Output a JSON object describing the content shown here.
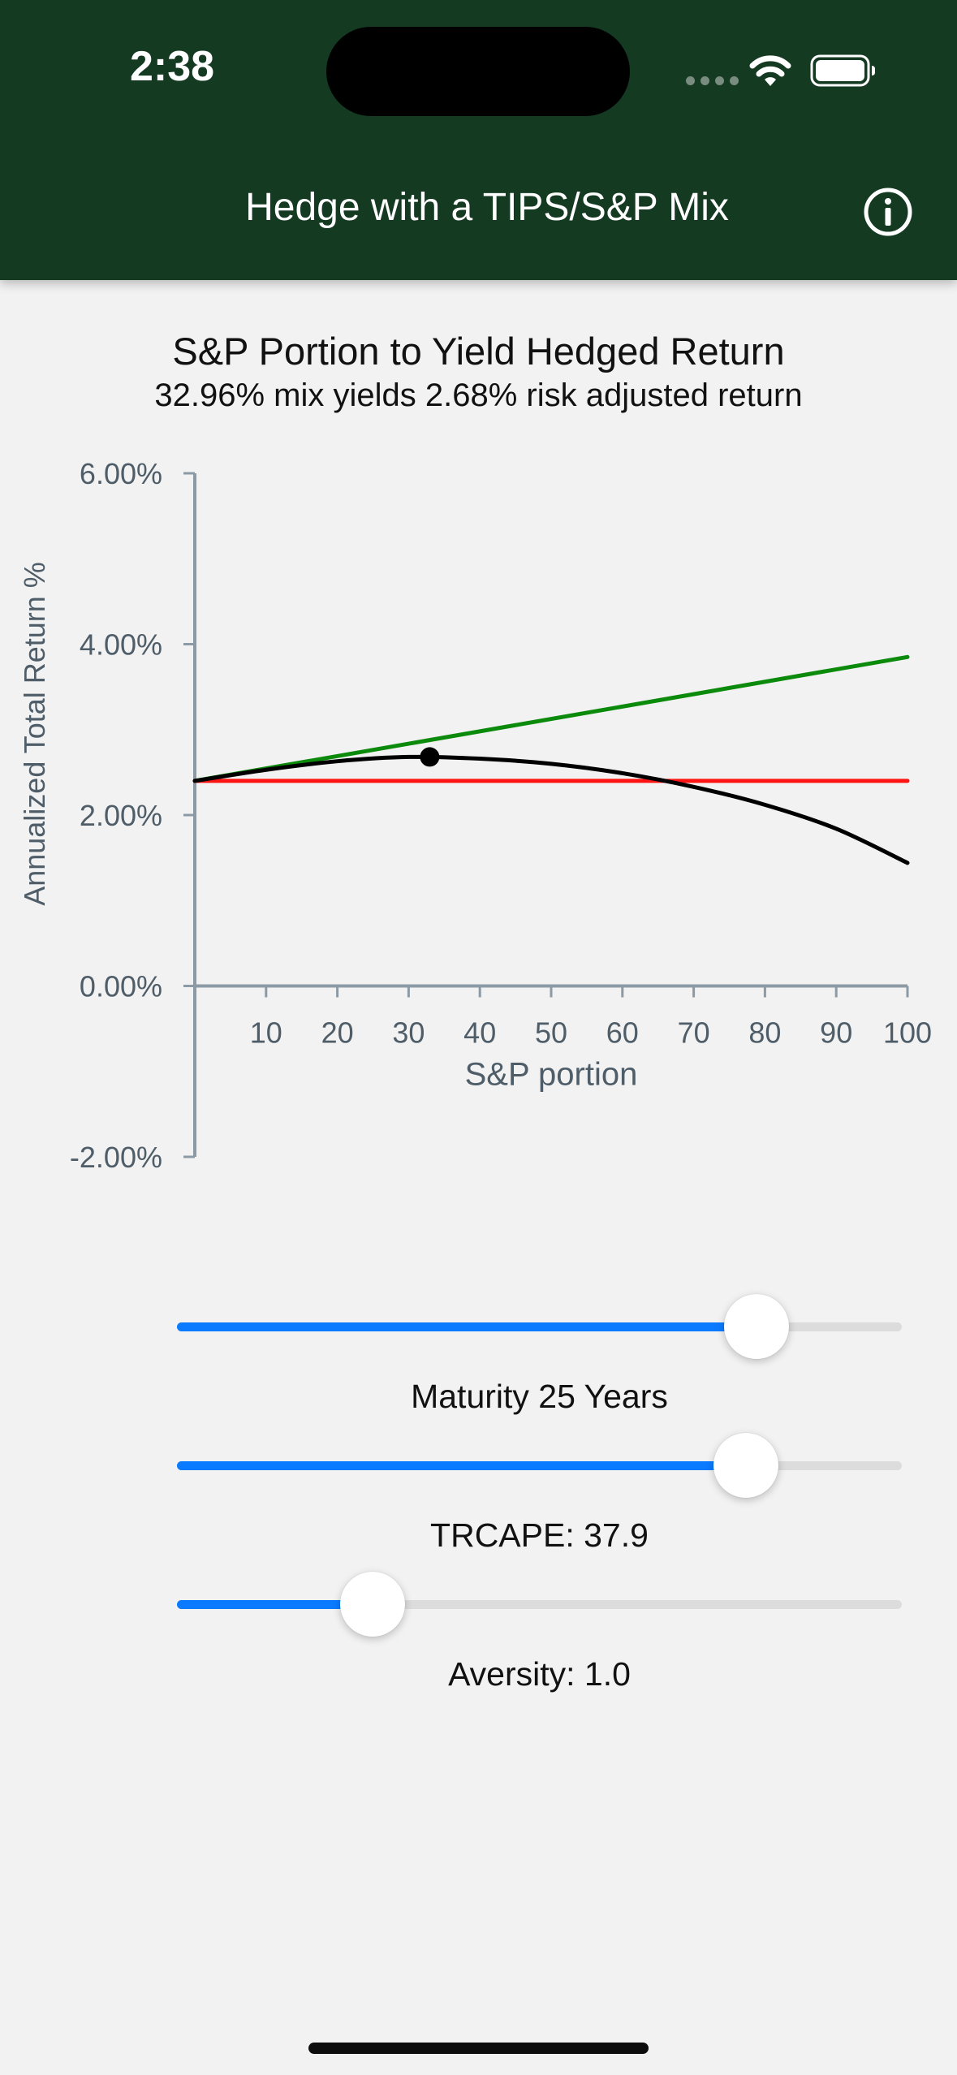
{
  "status_bar": {
    "time": "2:38"
  },
  "nav": {
    "title": "Hedge with a TIPS/S&P Mix",
    "info_icon": "info-icon"
  },
  "colors": {
    "header_bg": "#143a22",
    "accent": "#0a7bff",
    "series_green": "#0b8a0b",
    "series_red": "#ff1414",
    "series_black": "#000000",
    "axis": "#8c9aa5"
  },
  "chart": {
    "title": "S&P Portion to Yield Hedged Return",
    "subtitle": "32.96% mix yields 2.68% risk adjusted return"
  },
  "chart_data": {
    "type": "line",
    "xlabel": "S&P portion",
    "ylabel": "Annualized Total Return %",
    "xlim": [
      0,
      100
    ],
    "ylim": [
      -2,
      6
    ],
    "x_ticks": [
      10,
      20,
      30,
      40,
      50,
      60,
      70,
      80,
      90,
      100
    ],
    "y_ticks": [
      {
        "value": 6,
        "label": "6.00%"
      },
      {
        "value": 4,
        "label": "4.00%"
      },
      {
        "value": 2,
        "label": "2.00%"
      },
      {
        "value": 0,
        "label": "0.00%"
      },
      {
        "value": -2,
        "label": "-2.00%"
      }
    ],
    "series": [
      {
        "color": "#0b8a0b",
        "x": [
          0,
          100
        ],
        "y": [
          2.4,
          3.85
        ]
      },
      {
        "color": "#ff1414",
        "x": [
          0,
          100
        ],
        "y": [
          2.4,
          2.4
        ]
      },
      {
        "color": "#000000",
        "x": [
          0,
          10,
          20,
          30,
          40,
          50,
          60,
          70,
          80,
          90,
          100
        ],
        "y": [
          2.4,
          2.53,
          2.63,
          2.68,
          2.66,
          2.6,
          2.49,
          2.33,
          2.12,
          1.84,
          1.44
        ]
      }
    ],
    "marker": {
      "x": 32.96,
      "y": 2.68
    }
  },
  "controls": {
    "maturity": {
      "label": "Maturity 25 Years",
      "fraction": 0.8
    },
    "trcape": {
      "label": "TRCAPE: 37.9",
      "fraction": 0.785
    },
    "aversity": {
      "label": "Aversity: 1.0",
      "fraction": 0.27
    }
  }
}
